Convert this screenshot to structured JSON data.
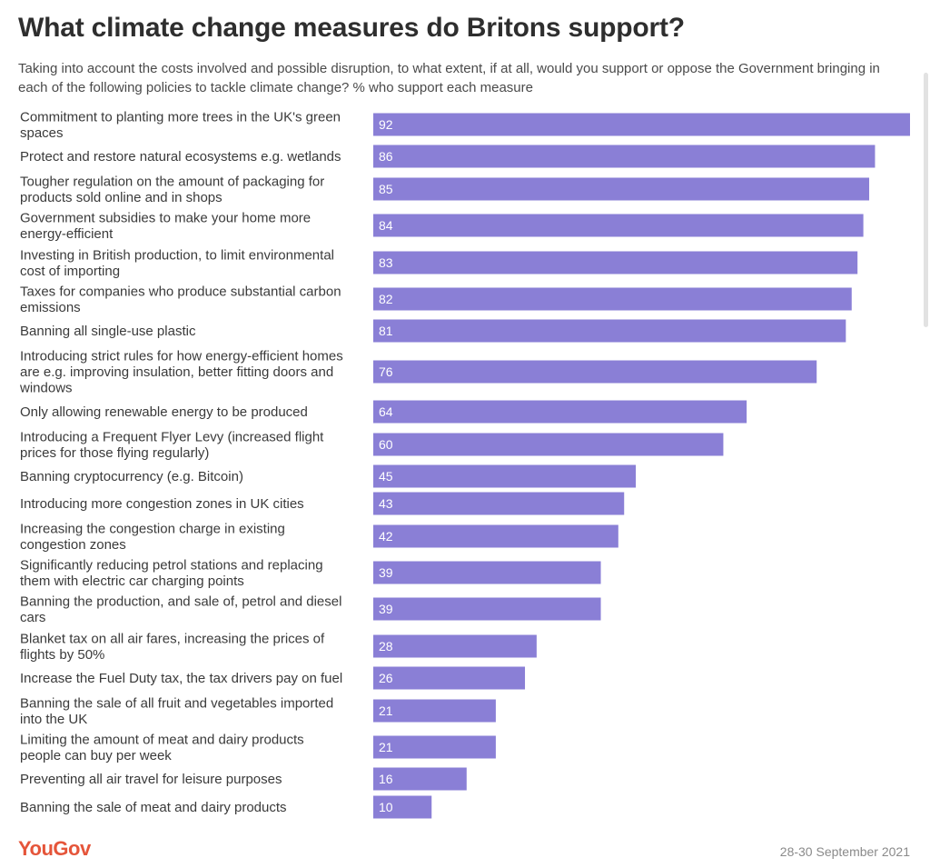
{
  "header": {
    "title": "What climate change measures do Britons support?",
    "subtitle": "Taking into account the costs involved and possible disruption, to what extent, if at all, would you support or oppose the Government bringing in each of the following policies to tackle climate change? % who support each measure"
  },
  "footer": {
    "logo": "YouGov",
    "date": "28-30 September 2021"
  },
  "colors": {
    "bar": "#8a7fd6",
    "logo": "#e5553a"
  },
  "chart_data": {
    "type": "bar",
    "orientation": "horizontal",
    "title": "What climate change measures do Britons support?",
    "xlabel": "",
    "ylabel": "",
    "xlim": [
      0,
      92
    ],
    "grid": false,
    "categories": [
      [
        "Commitment to planting more trees in the UK's green",
        "spaces"
      ],
      [
        "Protect and restore natural ecosystems e.g. wetlands"
      ],
      [
        "Tougher regulation on the amount of packaging for",
        "products sold online and in shops"
      ],
      [
        "Government subsidies to make your home more",
        "energy-efficient"
      ],
      [
        "Investing in British production, to limit environmental",
        "cost of importing"
      ],
      [
        "Taxes for companies who produce substantial carbon",
        "emissions"
      ],
      [
        "Banning all single-use plastic"
      ],
      [
        "Introducing strict rules for how energy-efficient homes",
        "are e.g. improving insulation, better fitting doors and",
        "windows"
      ],
      [
        "Only allowing renewable energy to be produced"
      ],
      [
        "Introducing a Frequent Flyer Levy (increased flight",
        "prices for those flying regularly)"
      ],
      [
        "Banning cryptocurrency (e.g. Bitcoin)"
      ],
      [
        "Introducing more congestion zones in UK cities"
      ],
      [
        "Increasing the congestion charge in existing",
        "congestion zones"
      ],
      [
        "Significantly reducing petrol stations and replacing",
        "them with electric car charging points"
      ],
      [
        "Banning the production, and sale of, petrol and diesel",
        "cars"
      ],
      [
        "Blanket tax on all air fares, increasing the prices of",
        "flights by 50%"
      ],
      [
        "Increase the Fuel Duty tax, the tax drivers pay on fuel"
      ],
      [
        "Banning the sale of all fruit and vegetables imported",
        "into the UK"
      ],
      [
        "Limiting the amount of meat and dairy products",
        "people can buy per week"
      ],
      [
        "Preventing all air travel for leisure purposes"
      ],
      [
        "Banning the sale of meat and dairy products"
      ]
    ],
    "values": [
      92,
      86,
      85,
      84,
      83,
      82,
      81,
      76,
      64,
      60,
      45,
      43,
      42,
      39,
      39,
      28,
      26,
      21,
      21,
      16,
      10
    ],
    "series": [
      {
        "name": "% who support each measure",
        "values": [
          92,
          86,
          85,
          84,
          83,
          82,
          81,
          76,
          64,
          60,
          45,
          43,
          42,
          39,
          39,
          28,
          26,
          21,
          21,
          16,
          10
        ]
      }
    ]
  }
}
